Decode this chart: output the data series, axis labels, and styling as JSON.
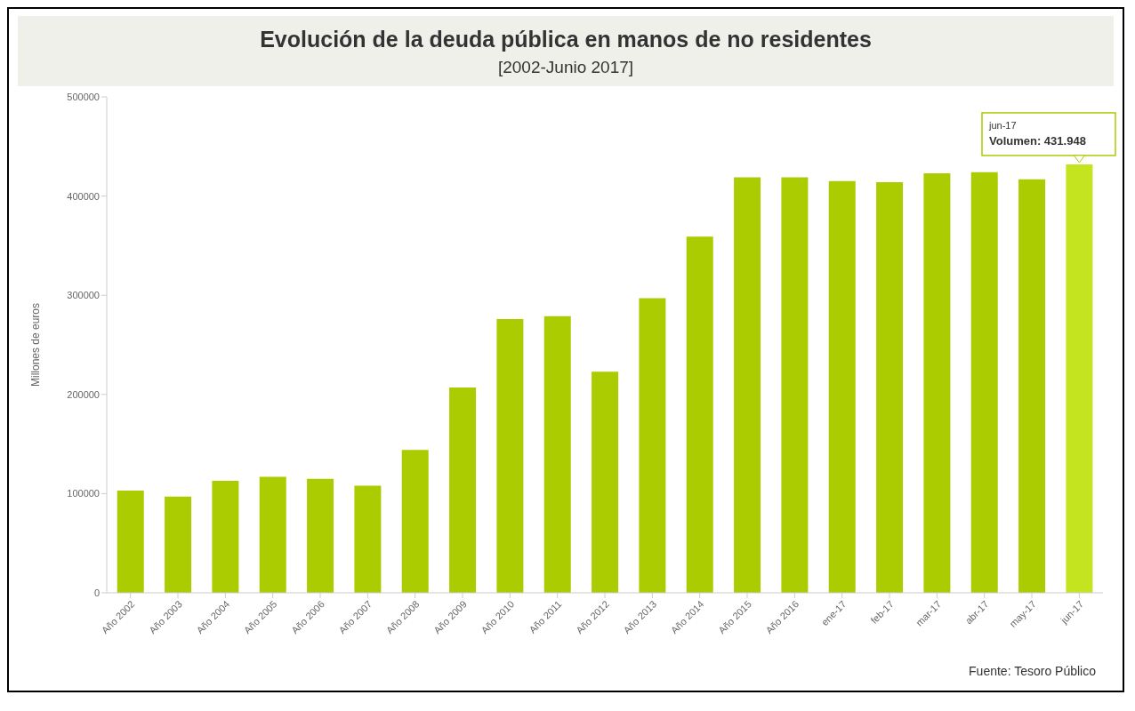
{
  "chart_data": {
    "type": "bar",
    "title": "Evolución de la deuda pública en manos de no residentes",
    "subtitle": "[2002-Junio 2017]",
    "ylabel": "Millones de euros",
    "categories": [
      "Año 2002",
      "Año 2003",
      "Año 2004",
      "Año 2005",
      "Año 2006",
      "Año 2007",
      "Año 2008",
      "Año 2009",
      "Año 2010",
      "Año 2011",
      "Año 2012",
      "Año 2013",
      "Año 2014",
      "Año 2015",
      "Año 2016",
      "ene-17",
      "feb-17",
      "mar-17",
      "abr-17",
      "may-17",
      "jun-17"
    ],
    "values": [
      103000,
      97000,
      113000,
      117000,
      115000,
      108000,
      144000,
      207000,
      276000,
      279000,
      223000,
      297000,
      359000,
      419000,
      419000,
      415000,
      414000,
      423000,
      424000,
      417000,
      431948
    ],
    "colors": [
      "#aacc00",
      "#aacc00",
      "#aacc00",
      "#aacc00",
      "#aacc00",
      "#aacc00",
      "#aacc00",
      "#aacc00",
      "#aacc00",
      "#aacc00",
      "#aacc00",
      "#aacc00",
      "#aacc00",
      "#aacc00",
      "#aacc00",
      "#aacc00",
      "#aacc00",
      "#aacc00",
      "#aacc00",
      "#aacc00",
      "#c5e420"
    ],
    "ylim": [
      0,
      500000
    ],
    "yticks": [
      0,
      100000,
      200000,
      300000,
      400000,
      500000
    ],
    "grid": false,
    "annotations": [
      {
        "text": "jun-17\nVolumen: 431.948",
        "x": "jun-17",
        "y": 431948
      },
      "Fuente: Tesoro Público"
    ]
  }
}
